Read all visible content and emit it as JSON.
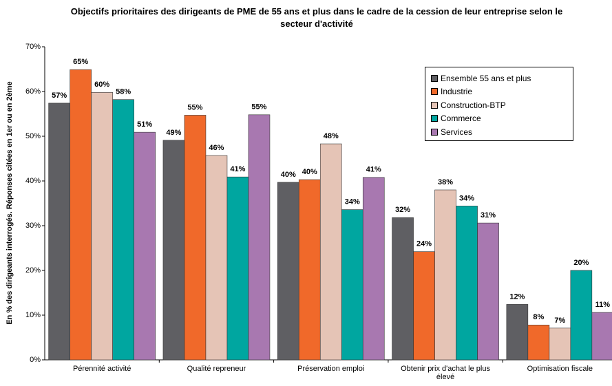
{
  "chart_data": {
    "type": "bar",
    "title": "Objectifs prioritaires des dirigeants de PME de 55 ans et plus dans le cadre de la cession de leur entreprise selon le secteur d'activité",
    "y_label": "En % des dirigeants interrogés. Réponses citées en 1er ou en 2ème",
    "categories": [
      "Pérennité activité",
      "Qualité repreneur",
      "Préservation emploi",
      "Obtenir  prix d'achat le plus élevé",
      "Optimisation fiscale"
    ],
    "series": [
      {
        "name": "Ensemble 55 ans et plus",
        "color": "#5f5f63",
        "values": [
          57.4,
          49.1,
          39.7,
          31.8,
          12.4
        ],
        "value_labels": [
          "57%",
          "49%",
          "40%",
          "32%",
          "12%"
        ]
      },
      {
        "name": "Industrie",
        "color": "#f0692a",
        "values": [
          64.9,
          54.7,
          40.3,
          24.2,
          7.8
        ],
        "value_labels": [
          "65%",
          "55%",
          "40%",
          "24%",
          "8%"
        ]
      },
      {
        "name": "Construction-BTP",
        "color": "#e5c4b6",
        "values": [
          59.8,
          45.7,
          48.3,
          38.0,
          7.1
        ],
        "value_labels": [
          "60%",
          "46%",
          "48%",
          "38%",
          "7%"
        ]
      },
      {
        "name": "Commerce",
        "color": "#00a6a0",
        "values": [
          58.2,
          40.9,
          33.6,
          34.4,
          20.0
        ],
        "value_labels": [
          "58%",
          "41%",
          "34%",
          "34%",
          "20%"
        ]
      },
      {
        "name": "Services",
        "color": "#a878b0",
        "values": [
          50.9,
          54.8,
          40.8,
          30.6,
          10.6
        ],
        "value_labels": [
          "51%",
          "55%",
          "41%",
          "31%",
          "11%"
        ]
      }
    ],
    "ylim": [
      0,
      70
    ],
    "yticks": [
      {
        "value": 0,
        "label": "0%"
      },
      {
        "value": 10,
        "label": "10%"
      },
      {
        "value": 20,
        "label": "20%"
      },
      {
        "value": 30,
        "label": "30%"
      },
      {
        "value": 40,
        "label": "40%"
      },
      {
        "value": 50,
        "label": "50%"
      },
      {
        "value": 60,
        "label": "60%"
      },
      {
        "value": 70,
        "label": "70%"
      }
    ],
    "grid": false,
    "legend": "upper right"
  }
}
